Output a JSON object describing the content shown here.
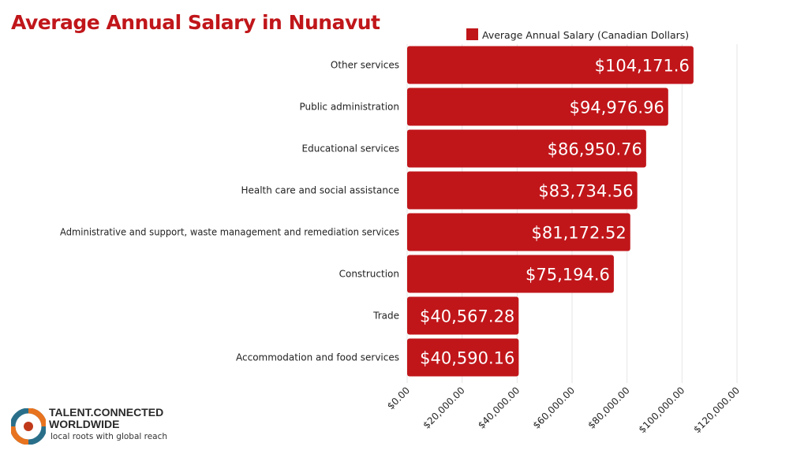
{
  "chart_data": {
    "type": "bar",
    "orientation": "horizontal",
    "title": "Average Annual Salary in Nunavut",
    "categories": [
      "Other services",
      "Public administration",
      "Educational services",
      "Health care and social assistance",
      "Administrative and support, waste management and remediation services",
      "Construction",
      "Trade",
      "Accommodation and food services"
    ],
    "series": [
      {
        "name": "Average Annual Salary (Canadian Dollars)",
        "values": [
          104171.6,
          94976.96,
          86950.76,
          83734.56,
          81172.52,
          75194.6,
          40567.28,
          40590.16
        ],
        "labels": [
          "$104,171.6",
          "$94,976.96",
          "$86,950.76",
          "$83,734.56",
          "$81,172.52",
          "$75,194.6",
          "$40,567.28",
          "$40,590.16"
        ],
        "color": "#c0161a"
      }
    ],
    "xlim": [
      0,
      120000
    ],
    "xticks": [
      0,
      20000,
      40000,
      60000,
      80000,
      100000,
      120000
    ],
    "xtick_labels": [
      "$0.00",
      "$20,000.00",
      "$40,000.00",
      "$60,000.00",
      "$80,000.00",
      "$100,000.00",
      "$120,000.00"
    ],
    "grid": true,
    "legend_position": "top"
  },
  "branding": {
    "name_line1": "TALENT.CONNECTED",
    "name_line2": "WORLDWIDE",
    "tagline": "local roots with global reach"
  }
}
